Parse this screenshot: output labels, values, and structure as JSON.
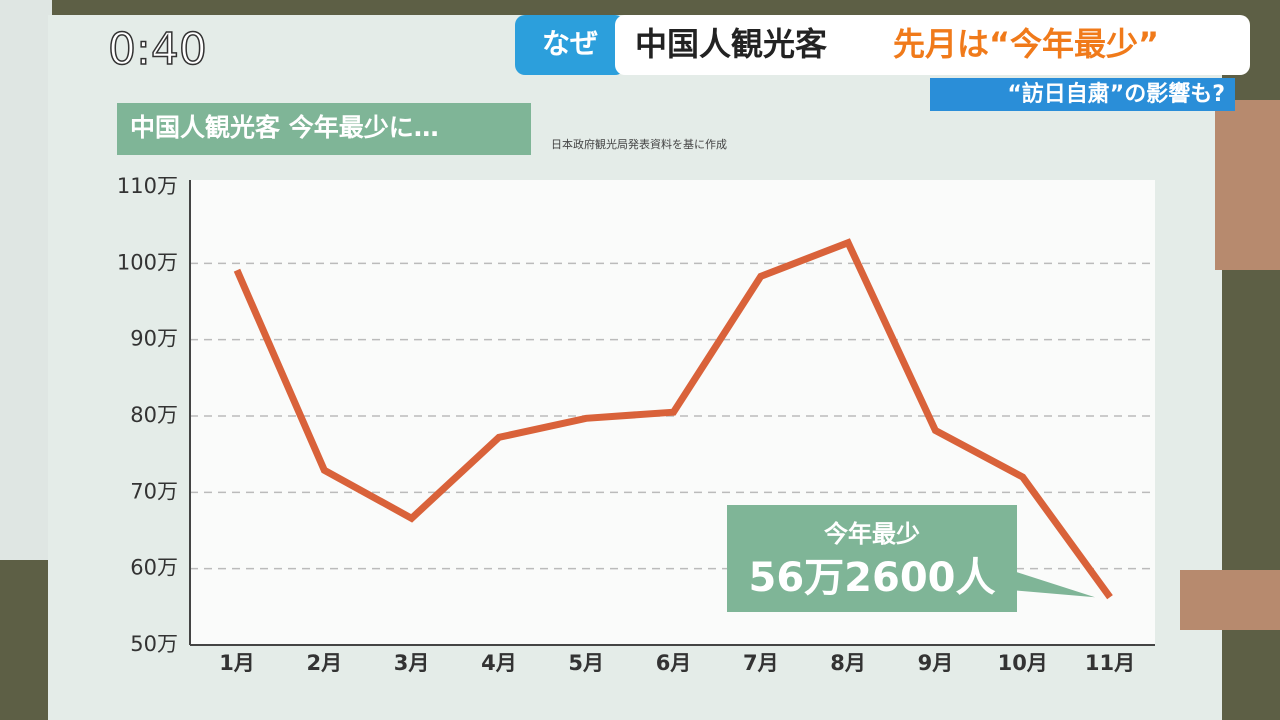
{
  "overlay": {
    "time": "0:40",
    "tag": "なぜ",
    "headline_1": "中国人観光客",
    "headline_2": "先月は“今年最少”",
    "subheadline": "“訪日自粛”の影響も?"
  },
  "chart_data": {
    "type": "line",
    "title": "中国人観光客 今年最少に…",
    "source": "日本政府観光局発表資料を基に作成",
    "categories": [
      "1月",
      "2月",
      "3月",
      "4月",
      "5月",
      "6月",
      "7月",
      "8月",
      "9月",
      "10月",
      "11月"
    ],
    "series": [
      {
        "name": "中国人観光客",
        "color": "#d9623a",
        "values": [
          99.1,
          72.9,
          66.6,
          77.2,
          79.7,
          80.5,
          98.3,
          102.7,
          78.1,
          72.0,
          56.26
        ],
        "value_labels": [
          null,
          null,
          null,
          null,
          null,
          null,
          null,
          null,
          null,
          null,
          "56万2600人"
        ]
      }
    ],
    "annotation": "今年最少",
    "ylim": [
      50,
      110
    ],
    "yticks": [
      {
        "value": 50,
        "label": "50万"
      },
      {
        "value": 60,
        "label": "60万"
      },
      {
        "value": 70,
        "label": "70万"
      },
      {
        "value": 80,
        "label": "80万"
      },
      {
        "value": 90,
        "label": "90万"
      },
      {
        "value": 100,
        "label": "100万"
      },
      {
        "value": 110,
        "label": "110万"
      }
    ],
    "grid": true
  }
}
